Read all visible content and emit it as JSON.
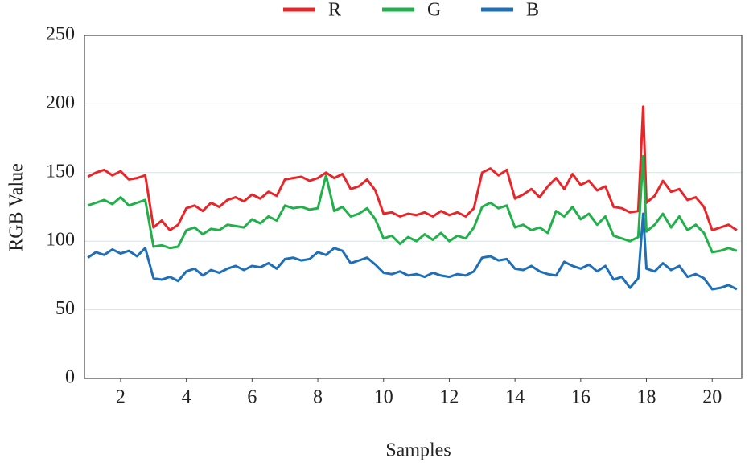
{
  "chart_data": {
    "type": "line",
    "x_label": "Samples",
    "y_label": "RGB Value",
    "x": [
      1,
      1.25,
      1.5,
      1.75,
      2,
      2.25,
      2.5,
      2.75,
      3,
      3.25,
      3.5,
      3.75,
      4,
      4.25,
      4.5,
      4.75,
      5,
      5.25,
      5.5,
      5.75,
      6,
      6.25,
      6.5,
      6.75,
      7,
      7.25,
      7.5,
      7.75,
      8,
      8.25,
      8.5,
      8.75,
      9,
      9.25,
      9.5,
      9.75,
      10,
      10.25,
      10.5,
      10.75,
      11,
      11.25,
      11.5,
      11.75,
      12,
      12.25,
      12.5,
      12.75,
      13,
      13.25,
      13.5,
      13.75,
      14,
      14.25,
      14.5,
      14.75,
      15,
      15.25,
      15.5,
      15.75,
      16,
      16.25,
      16.5,
      16.75,
      17,
      17.25,
      17.5,
      17.75,
      17.9,
      18,
      18.25,
      18.5,
      18.75,
      19,
      19.25,
      19.5,
      19.75,
      20,
      20.25,
      20.5,
      20.75
    ],
    "series": [
      {
        "name": "R",
        "color": "#e8262a",
        "values": [
          147,
          150,
          152,
          148,
          151,
          145,
          146,
          148,
          110,
          115,
          108,
          112,
          124,
          126,
          122,
          128,
          125,
          130,
          132,
          129,
          134,
          131,
          136,
          133,
          145,
          146,
          147,
          144,
          146,
          150,
          146,
          149,
          138,
          140,
          145,
          137,
          120,
          121,
          118,
          120,
          119,
          121,
          118,
          122,
          119,
          121,
          118,
          124,
          150,
          153,
          148,
          152,
          131,
          134,
          138,
          132,
          140,
          146,
          138,
          149,
          141,
          144,
          137,
          140,
          125,
          124,
          121,
          122,
          198,
          128,
          133,
          144,
          136,
          138,
          130,
          132,
          125,
          108,
          110,
          112,
          108
        ]
      },
      {
        "name": "G",
        "color": "#22b04b",
        "values": [
          126,
          128,
          130,
          127,
          132,
          126,
          128,
          130,
          96,
          97,
          95,
          96,
          108,
          110,
          105,
          109,
          108,
          112,
          111,
          110,
          116,
          113,
          118,
          115,
          126,
          124,
          125,
          123,
          124,
          148,
          122,
          125,
          118,
          120,
          124,
          116,
          102,
          104,
          98,
          103,
          100,
          105,
          101,
          106,
          100,
          104,
          102,
          110,
          125,
          128,
          124,
          126,
          110,
          112,
          108,
          110,
          106,
          122,
          118,
          125,
          116,
          120,
          112,
          118,
          104,
          102,
          100,
          103,
          162,
          107,
          112,
          120,
          110,
          118,
          108,
          112,
          106,
          92,
          93,
          95,
          93
        ]
      },
      {
        "name": "B",
        "color": "#1f6fb8",
        "values": [
          88,
          92,
          90,
          94,
          91,
          93,
          89,
          95,
          73,
          72,
          74,
          71,
          78,
          80,
          75,
          79,
          77,
          80,
          82,
          79,
          82,
          81,
          84,
          80,
          87,
          88,
          86,
          87,
          92,
          90,
          95,
          93,
          84,
          86,
          88,
          83,
          77,
          76,
          78,
          75,
          76,
          74,
          77,
          75,
          74,
          76,
          75,
          78,
          88,
          89,
          86,
          87,
          80,
          79,
          82,
          78,
          76,
          75,
          85,
          82,
          80,
          83,
          78,
          82,
          72,
          74,
          66,
          73,
          120,
          80,
          78,
          84,
          79,
          82,
          74,
          76,
          73,
          65,
          66,
          68,
          65
        ]
      }
    ],
    "xlim": [
      0.9,
      20.9
    ],
    "xticks": [
      2,
      4,
      6,
      8,
      10,
      12,
      14,
      16,
      18,
      20
    ],
    "ylim": [
      0,
      250
    ],
    "yticks": [
      0,
      50,
      100,
      150,
      200,
      250
    ],
    "grid": true,
    "legend": "top"
  }
}
